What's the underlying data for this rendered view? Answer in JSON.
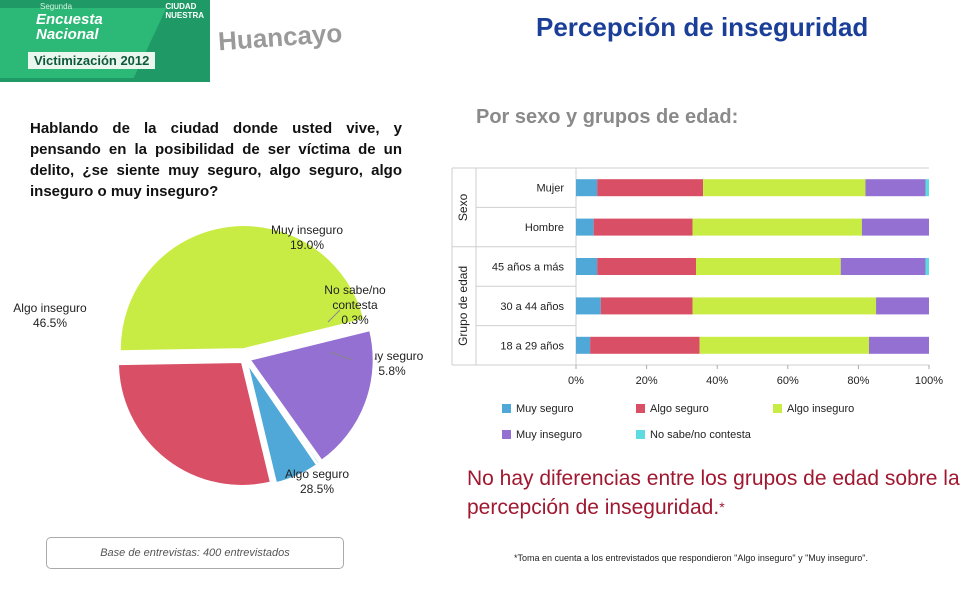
{
  "header": {
    "logo_small": "Segunda",
    "logo_line1": "Encuesta",
    "logo_line2": "Nacional",
    "logo_year": "Victimización 2012",
    "logo_brand1": "CIUDAD",
    "logo_brand2": "NUESTRA",
    "city": "Huancayo",
    "title": "Percepción de inseguridad"
  },
  "question": "Hablando de la ciudad donde usted vive, y pensando en la posibilidad de ser víctima de un delito, ¿se siente muy seguro, algo seguro, algo inseguro o muy inseguro?",
  "subtitle": "Por sexo y grupos de edad:",
  "base_note": "Base de entrevistas: 400 entrevistados",
  "conclusion": "No hay diferencias entre los grupos de edad sobre la percepción de inseguridad.",
  "conclusion_mark": "*",
  "footnote": "*Toma en cuenta a los entrevistados que respondieron \"Algo inseguro\" y \"Muy inseguro\".",
  "colors": {
    "muy_seguro": "#4fa8d8",
    "algo_seguro": "#d94f66",
    "algo_inseguro": "#c8ec44",
    "muy_inseguro": "#9470d2",
    "no_sabe": "#5cdbe0"
  },
  "chart_data": [
    {
      "type": "pie",
      "slices": [
        {
          "label": "Muy seguro",
          "display": "5.8%",
          "value": 5.8,
          "color": "#4fa8d8"
        },
        {
          "label": "Algo seguro",
          "display": "28.5%",
          "value": 28.5,
          "color": "#d94f66"
        },
        {
          "label": "Algo inseguro",
          "display": "46.5%",
          "value": 46.5,
          "color": "#c8ec44"
        },
        {
          "label": "Muy inseguro",
          "display": "19.0%",
          "value": 19.0,
          "color": "#9470d2"
        },
        {
          "label": "No sabe/no contesta",
          "display": "0.3%",
          "value": 0.3,
          "color": "#5cdbe0"
        }
      ],
      "label_lines": {
        "Muy seguro": [
          "Muy seguro",
          "5.8%"
        ],
        "Algo seguro": [
          "Algo seguro",
          "28.5%"
        ],
        "Algo inseguro": [
          "Algo inseguro",
          "46.5%"
        ],
        "Muy inseguro": [
          "Muy inseguro",
          "19.0%"
        ],
        "No sabe/no contesta": [
          "No sabe/no",
          "contesta",
          "0.3%"
        ]
      }
    },
    {
      "type": "bar",
      "orientation": "horizontal",
      "stacked": true,
      "categories": [
        "Mujer",
        "Hombre",
        "45 años a más",
        "30 a 44 años",
        "18 a 29 años"
      ],
      "groups": [
        {
          "label": "Sexo",
          "categories": [
            "Mujer",
            "Hombre"
          ]
        },
        {
          "label": "Grupo de edad",
          "categories": [
            "45 años a más",
            "30 a 44 años",
            "18 a 29 años"
          ]
        }
      ],
      "series": [
        {
          "name": "Muy seguro",
          "color": "#4fa8d8",
          "values": [
            6,
            5,
            6,
            7,
            4
          ]
        },
        {
          "name": "Algo seguro",
          "color": "#d94f66",
          "values": [
            30,
            28,
            28,
            26,
            31
          ]
        },
        {
          "name": "Algo inseguro",
          "color": "#c8ec44",
          "values": [
            46,
            48,
            41,
            52,
            48
          ]
        },
        {
          "name": "Muy inseguro",
          "color": "#9470d2",
          "values": [
            17,
            19,
            24,
            15,
            17
          ]
        },
        {
          "name": "No sabe/no contesta",
          "color": "#5cdbe0",
          "values": [
            1,
            0,
            1,
            0,
            0
          ]
        }
      ],
      "xlim": [
        0,
        100
      ],
      "xticks": [
        "0%",
        "20%",
        "40%",
        "60%",
        "80%",
        "100%"
      ],
      "legend_position": "bottom",
      "grid": false
    }
  ]
}
